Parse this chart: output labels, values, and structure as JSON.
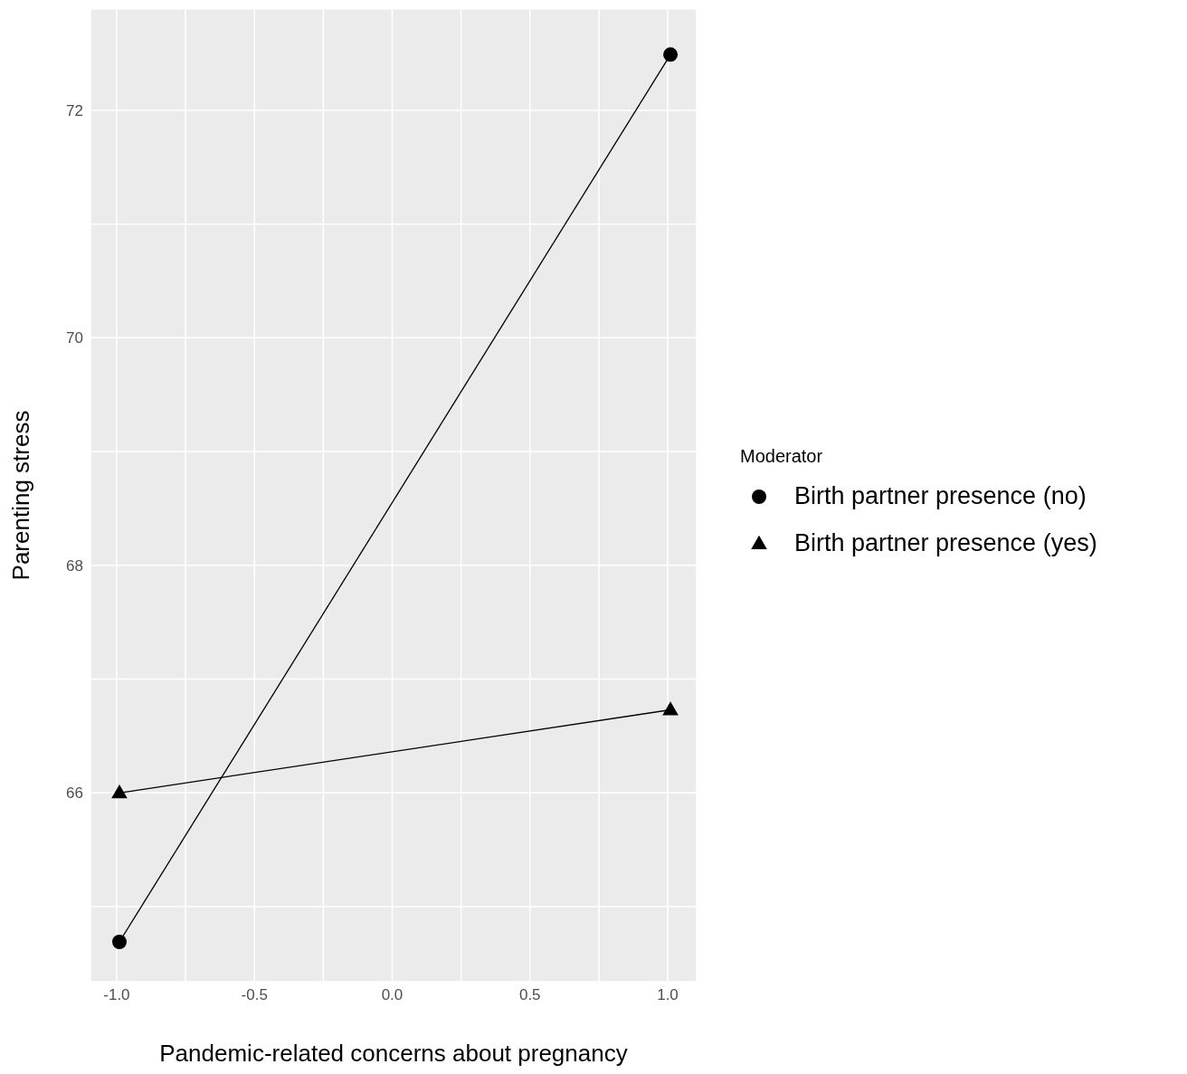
{
  "chart_data": {
    "type": "line",
    "xlabel": "Pandemic-related concerns about pregnancy",
    "ylabel": "Parenting stress",
    "legend_title": "Moderator",
    "legend": "right",
    "grid": true,
    "xlim": [
      -1.095,
      1.105
    ],
    "ylim": [
      64.34,
      72.89
    ],
    "xticks": [
      {
        "value": -1,
        "label": "-1.0"
      },
      {
        "value": -0.75,
        "label": null
      },
      {
        "value": -0.5,
        "label": "-0.5"
      },
      {
        "value": -0.25,
        "label": null
      },
      {
        "value": 0,
        "label": "0.0"
      },
      {
        "value": 0.25,
        "label": null
      },
      {
        "value": 0.5,
        "label": "0.5"
      },
      {
        "value": 0.75,
        "label": null
      },
      {
        "value": 1,
        "label": "1.0"
      }
    ],
    "yticks": [
      {
        "value": 65,
        "label": null
      },
      66,
      {
        "value": 67,
        "label": null
      },
      68,
      {
        "value": 69,
        "label": null
      },
      70,
      {
        "value": 71,
        "label": null
      },
      72
    ],
    "x": [
      -0.99,
      1.01
    ],
    "series": [
      {
        "name": "Birth partner presence (no)",
        "color": "#000000",
        "marker": "circle",
        "values": [
          64.69,
          72.49
        ]
      },
      {
        "name": "Birth partner presence (yes)",
        "color": "#000000",
        "marker": "triangle",
        "values": [
          66.0,
          66.73
        ]
      }
    ]
  }
}
